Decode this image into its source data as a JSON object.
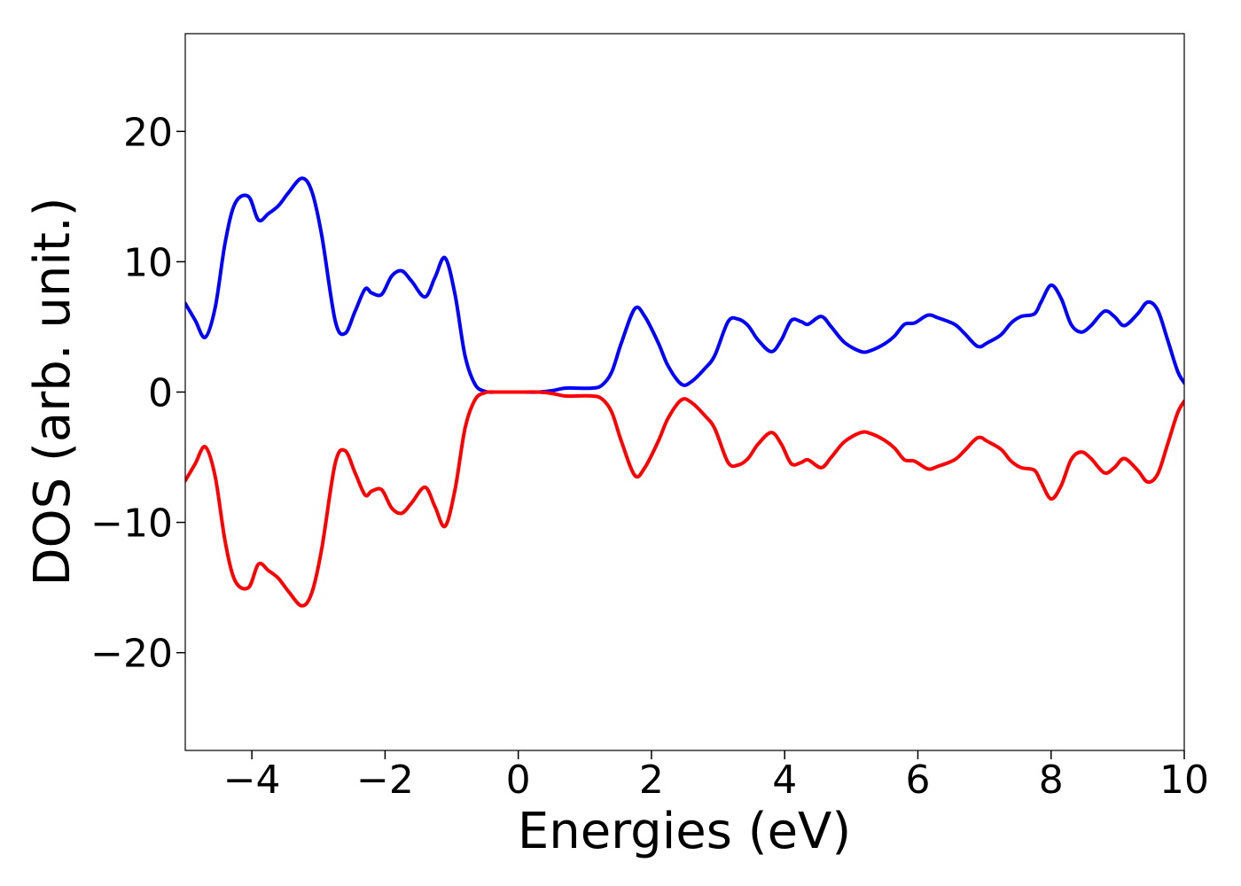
{
  "chart_data": {
    "type": "line",
    "xlabel": "Energies (eV)",
    "ylabel": "DOS (arb. unit.)",
    "xlim": [
      -5,
      10
    ],
    "ylim": [
      -27.5,
      27.5
    ],
    "xticks": [
      -4,
      -2,
      0,
      2,
      4,
      6,
      8,
      10
    ],
    "xtick_labels": [
      "−4",
      "−2",
      "0",
      "2",
      "4",
      "6",
      "8",
      "10"
    ],
    "yticks": [
      20,
      10,
      0,
      -10,
      -20
    ],
    "ytick_labels": [
      "20",
      "10",
      "0",
      "−10",
      "−20"
    ],
    "grid": false,
    "legend": "none",
    "series": [
      {
        "color": "#0000ff",
        "x": [
          -5.0,
          -4.85,
          -4.7,
          -4.55,
          -4.4,
          -4.25,
          -4.05,
          -3.9,
          -3.75,
          -3.6,
          -3.45,
          -3.25,
          -3.1,
          -2.95,
          -2.75,
          -2.6,
          -2.45,
          -2.3,
          -2.2,
          -2.05,
          -1.9,
          -1.75,
          -1.6,
          -1.4,
          -1.25,
          -1.1,
          -0.95,
          -0.8,
          -0.65,
          -0.5,
          -0.35,
          -0.2,
          0.0,
          0.3,
          0.5,
          0.7,
          0.9,
          1.1,
          1.25,
          1.4,
          1.55,
          1.75,
          1.9,
          2.1,
          2.25,
          2.45,
          2.6,
          2.8,
          2.95,
          3.15,
          3.3,
          3.45,
          3.6,
          3.8,
          3.95,
          4.1,
          4.25,
          4.35,
          4.55,
          4.7,
          4.9,
          5.15,
          5.3,
          5.5,
          5.65,
          5.8,
          5.95,
          6.15,
          6.3,
          6.55,
          6.7,
          6.9,
          7.05,
          7.25,
          7.4,
          7.55,
          7.75,
          7.85,
          8.0,
          8.15,
          8.3,
          8.45,
          8.6,
          8.8,
          8.95,
          9.1,
          9.3,
          9.45,
          9.6,
          9.75,
          9.9,
          10.0
        ],
        "values": [
          6.8,
          5.5,
          4.2,
          6.5,
          11.5,
          14.5,
          15.0,
          13.2,
          13.7,
          14.3,
          15.3,
          16.4,
          15.4,
          12.0,
          5.5,
          4.5,
          6.2,
          7.9,
          7.6,
          7.5,
          8.9,
          9.3,
          8.5,
          7.3,
          8.8,
          10.3,
          7.5,
          2.8,
          0.6,
          0.05,
          0.0,
          0.0,
          0.0,
          0.0,
          0.1,
          0.3,
          0.3,
          0.3,
          0.5,
          1.5,
          3.8,
          6.4,
          5.8,
          3.8,
          2.0,
          0.6,
          0.8,
          1.8,
          2.8,
          5.4,
          5.6,
          5.1,
          4.0,
          3.1,
          4.0,
          5.5,
          5.4,
          5.2,
          5.8,
          5.0,
          3.8,
          3.1,
          3.2,
          3.7,
          4.3,
          5.2,
          5.3,
          5.9,
          5.7,
          5.2,
          4.5,
          3.5,
          3.8,
          4.4,
          5.3,
          5.8,
          6.0,
          6.9,
          8.2,
          7.2,
          5.2,
          4.6,
          5.1,
          6.2,
          5.8,
          5.1,
          6.0,
          6.9,
          6.3,
          4.0,
          1.6,
          0.7
        ]
      },
      {
        "color": "#ff0000",
        "x": [
          -5.0,
          -4.85,
          -4.7,
          -4.55,
          -4.4,
          -4.25,
          -4.05,
          -3.9,
          -3.75,
          -3.6,
          -3.45,
          -3.25,
          -3.1,
          -2.95,
          -2.75,
          -2.6,
          -2.45,
          -2.3,
          -2.2,
          -2.05,
          -1.9,
          -1.75,
          -1.6,
          -1.4,
          -1.25,
          -1.1,
          -0.95,
          -0.8,
          -0.65,
          -0.5,
          -0.35,
          -0.2,
          0.0,
          0.3,
          0.5,
          0.7,
          0.9,
          1.1,
          1.25,
          1.4,
          1.55,
          1.75,
          1.9,
          2.1,
          2.25,
          2.45,
          2.6,
          2.8,
          2.95,
          3.15,
          3.3,
          3.45,
          3.6,
          3.8,
          3.95,
          4.1,
          4.25,
          4.35,
          4.55,
          4.7,
          4.9,
          5.15,
          5.3,
          5.5,
          5.65,
          5.8,
          5.95,
          6.15,
          6.3,
          6.55,
          6.7,
          6.9,
          7.05,
          7.25,
          7.4,
          7.55,
          7.75,
          7.85,
          8.0,
          8.15,
          8.3,
          8.45,
          8.6,
          8.8,
          8.95,
          9.1,
          9.3,
          9.45,
          9.6,
          9.75,
          9.9,
          10.0
        ],
        "values": [
          -6.8,
          -5.5,
          -4.2,
          -6.5,
          -11.5,
          -14.5,
          -15.0,
          -13.2,
          -13.7,
          -14.3,
          -15.3,
          -16.4,
          -15.4,
          -12.0,
          -5.5,
          -4.5,
          -6.2,
          -7.9,
          -7.6,
          -7.5,
          -8.9,
          -9.3,
          -8.5,
          -7.3,
          -8.8,
          -10.3,
          -7.5,
          -2.8,
          -0.6,
          -0.05,
          0.0,
          0.0,
          0.0,
          0.0,
          -0.1,
          -0.3,
          -0.3,
          -0.3,
          -0.5,
          -1.5,
          -3.8,
          -6.4,
          -5.8,
          -3.8,
          -2.0,
          -0.6,
          -0.8,
          -1.8,
          -2.8,
          -5.4,
          -5.6,
          -5.1,
          -4.0,
          -3.1,
          -4.0,
          -5.5,
          -5.4,
          -5.2,
          -5.8,
          -5.0,
          -3.8,
          -3.1,
          -3.2,
          -3.7,
          -4.3,
          -5.2,
          -5.3,
          -5.9,
          -5.7,
          -5.2,
          -4.5,
          -3.5,
          -3.8,
          -4.4,
          -5.3,
          -5.8,
          -6.0,
          -6.9,
          -8.2,
          -7.2,
          -5.2,
          -4.6,
          -5.1,
          -6.2,
          -5.8,
          -5.1,
          -6.0,
          -6.9,
          -6.3,
          -4.0,
          -1.6,
          -0.7
        ]
      }
    ]
  }
}
